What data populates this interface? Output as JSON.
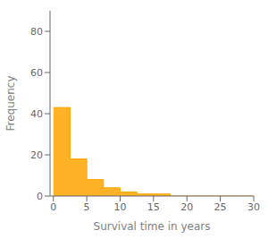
{
  "chart_data": {
    "type": "histogram",
    "xlabel": "Survival time in years",
    "ylabel": "Frequency",
    "bins": [
      0,
      2.5,
      5,
      7.5,
      10,
      12.5,
      15,
      17.5,
      20,
      22.5,
      25,
      27.5,
      30
    ],
    "values": [
      43,
      18,
      8,
      4,
      2,
      1,
      1,
      0,
      0,
      0,
      0,
      0
    ],
    "color": "#FFA500",
    "xlim": [
      -0.5,
      30
    ],
    "ylim": [
      0,
      90
    ],
    "xticks": [
      0,
      5,
      10,
      15,
      20,
      25,
      30
    ],
    "yticks": [
      0,
      20,
      40,
      60,
      80
    ],
    "grid": false
  }
}
